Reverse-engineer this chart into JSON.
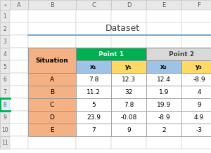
{
  "title": "Dataset",
  "col_headers_row5": [
    "Situation",
    "x₁",
    "y₁",
    "x₂",
    "y₂"
  ],
  "rows": [
    [
      "A",
      "7.8",
      "12.3",
      "12.4",
      "-8.9"
    ],
    [
      "B",
      "11.2",
      "32",
      "1.9",
      "4"
    ],
    [
      "C",
      "5",
      "7.8",
      "19.9",
      "9"
    ],
    [
      "D",
      "23.9",
      "-0.08",
      "-8.9",
      "4.9"
    ],
    [
      "E",
      "7",
      "9",
      "2",
      "-3"
    ]
  ],
  "colors": {
    "situation_header_bg": "#F4B183",
    "point1_header_bg": "#00B050",
    "point2_header_bg": "#D9D9D9",
    "x1_bg": "#9DC3E6",
    "y1_bg": "#FFD966",
    "x2_bg": "#9DC3E6",
    "y2_bg": "#FFD966",
    "border": "#A0A0A0",
    "title_color": "#404040",
    "title_underline": "#5B9BD5",
    "excel_header_bg": "#E8E8E8",
    "excel_border": "#C0C0C0",
    "row_selected_bg": "#DDEEFF"
  },
  "excel_col_labels": [
    "A",
    "B",
    "C",
    "D",
    "E",
    "F"
  ],
  "num_rows": 11
}
